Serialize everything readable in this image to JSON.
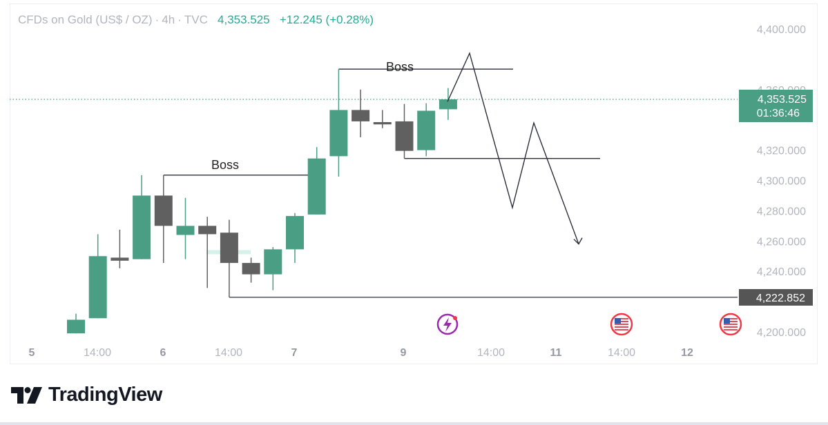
{
  "header": {
    "symbol": "CFDs on Gold (US$ / OZ)",
    "interval": "4h",
    "source": "TVC",
    "price": "4,353.525",
    "change": "+12.245",
    "change_pct": "(+0.28%)"
  },
  "price_label": {
    "price": "4,353.525",
    "countdown": "01:36:46"
  },
  "level_label": "4,222.852",
  "annotations": {
    "boss_1": "Boss",
    "boss_2": "Boss"
  },
  "brand": {
    "name": "TradingView"
  },
  "colors": {
    "up": "#4a9e83",
    "down": "#606060",
    "accent": "#22ab94",
    "axis_text": "#b2b5be"
  },
  "event_icons": [
    "lightning-event-icon",
    "us-flag-event-icon",
    "us-flag-event-icon"
  ],
  "chart_data": {
    "type": "candlestick",
    "title": "CFDs on Gold (US$ / OZ) · 4h · TVC",
    "ylim": [
      4195,
      4410
    ],
    "y_ticks": [
      "4,200.000",
      "4,240.000",
      "4,260.000",
      "4,280.000",
      "4,300.000",
      "4,320.000",
      "4,360.000",
      "4,400.000"
    ],
    "x_ticks": [
      {
        "label": "5",
        "bold": true
      },
      {
        "label": "14:00",
        "bold": false
      },
      {
        "label": "6",
        "bold": true
      },
      {
        "label": "14:00",
        "bold": false
      },
      {
        "label": "7",
        "bold": true
      },
      {
        "label": "9",
        "bold": true
      },
      {
        "label": "14:00",
        "bold": false
      },
      {
        "label": "11",
        "bold": true
      },
      {
        "label": "14:00",
        "bold": false
      },
      {
        "label": "12",
        "bold": true
      }
    ],
    "candles": [
      {
        "o": 4199.0,
        "h": 4212.0,
        "l": 4199.0,
        "c": 4208.0
      },
      {
        "o": 4209.0,
        "h": 4264.5,
        "l": 4209.0,
        "c": 4250.0
      },
      {
        "o": 4249.0,
        "h": 4267.5,
        "l": 4242.0,
        "c": 4247.0
      },
      {
        "o": 4248.0,
        "h": 4303.5,
        "l": 4248.0,
        "c": 4290.0
      },
      {
        "o": 4290.0,
        "h": 4303.5,
        "l": 4245.5,
        "c": 4270.0
      },
      {
        "o": 4264.0,
        "h": 4288.5,
        "l": 4248.0,
        "c": 4270.0
      },
      {
        "o": 4270.0,
        "h": 4276.0,
        "l": 4229.0,
        "c": 4264.5
      },
      {
        "o": 4265.5,
        "h": 4274.0,
        "l": 4222.852,
        "c": 4245.5
      },
      {
        "o": 4245.5,
        "h": 4249.0,
        "l": 4232.5,
        "c": 4238.0
      },
      {
        "o": 4238.0,
        "h": 4256.0,
        "l": 4227.5,
        "c": 4254.5
      },
      {
        "o": 4254.5,
        "h": 4278.5,
        "l": 4245.5,
        "c": 4276.5
      },
      {
        "o": 4277.5,
        "h": 4322.0,
        "l": 4277.5,
        "c": 4314.5
      },
      {
        "o": 4316.0,
        "h": 4373.5,
        "l": 4302.5,
        "c": 4346.5
      },
      {
        "o": 4346.5,
        "h": 4360.0,
        "l": 4328.5,
        "c": 4339.0
      },
      {
        "o": 4338.5,
        "h": 4346.5,
        "l": 4334.5,
        "c": 4337.0
      },
      {
        "o": 4339.0,
        "h": 4350.5,
        "l": 4314.5,
        "c": 4319.5
      },
      {
        "o": 4320.0,
        "h": 4351.0,
        "l": 4316.0,
        "c": 4346.0
      },
      {
        "o": 4347.0,
        "h": 4361.0,
        "l": 4340.0,
        "c": 4353.525
      }
    ],
    "current_price": 4353.525,
    "horizontal_levels": [
      {
        "value": 4222.852,
        "from_candle": 7
      },
      {
        "value": 4373.5,
        "from_candle": 12,
        "label": "Boss"
      },
      {
        "value": 4303.5,
        "from_candle": 4,
        "label": "Boss"
      },
      {
        "value": 4314.5,
        "from_candle": 15
      }
    ],
    "projection_path": [
      4352.0,
      4384.0,
      4282.0,
      4338.0,
      4258.0
    ]
  }
}
